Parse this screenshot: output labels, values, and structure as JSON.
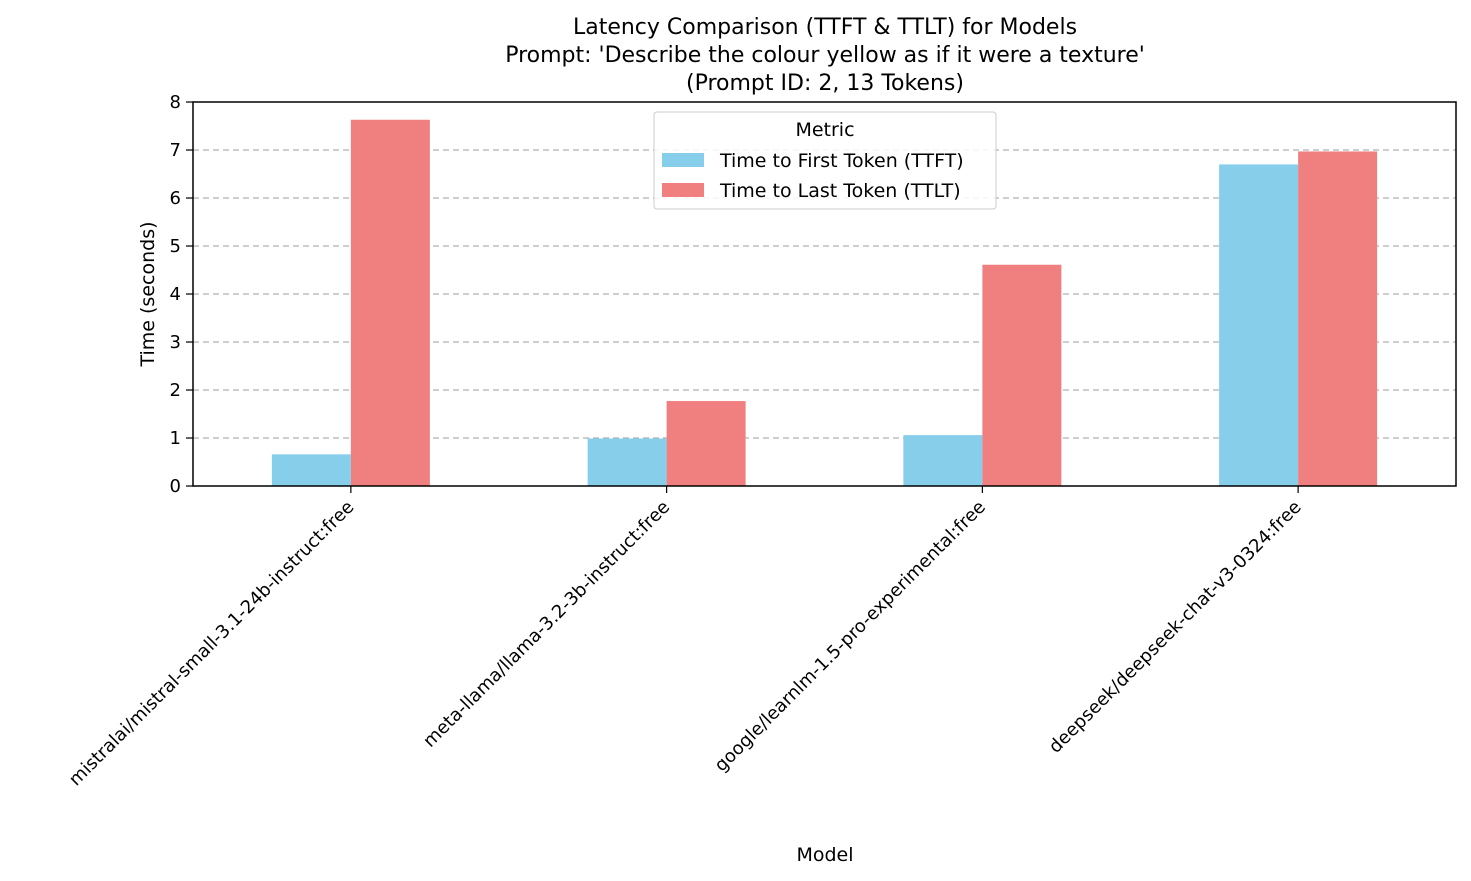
{
  "chart_data": {
    "type": "bar",
    "title_lines": [
      "Latency Comparison (TTFT & TTLT) for Models",
      "Prompt: 'Describe the colour yellow as if it were a texture'",
      "(Prompt ID: 2, 13 Tokens)"
    ],
    "xlabel": "Model",
    "ylabel": "Time (seconds)",
    "ylim": [
      0,
      8
    ],
    "yticks": [
      0,
      1,
      2,
      3,
      4,
      5,
      6,
      7,
      8
    ],
    "grid": "y-dashed",
    "legend": {
      "title": "Metric",
      "placement": "top-center"
    },
    "categories": [
      "mistralai/mistral-small-3.1-24b-instruct:free",
      "meta-llama/llama-3.2-3b-instruct:free",
      "google/learnlm-1.5-pro-experimental:free",
      "deepseek/deepseek-chat-v3-0324:free"
    ],
    "series": [
      {
        "name": "Time to First Token (TTFT)",
        "color": "#87ceeb",
        "values": [
          0.66,
          0.99,
          1.06,
          6.7
        ]
      },
      {
        "name": "Time to Last Token (TTLT)",
        "color": "#f08080",
        "values": [
          7.63,
          1.77,
          4.61,
          6.97
        ]
      }
    ]
  }
}
